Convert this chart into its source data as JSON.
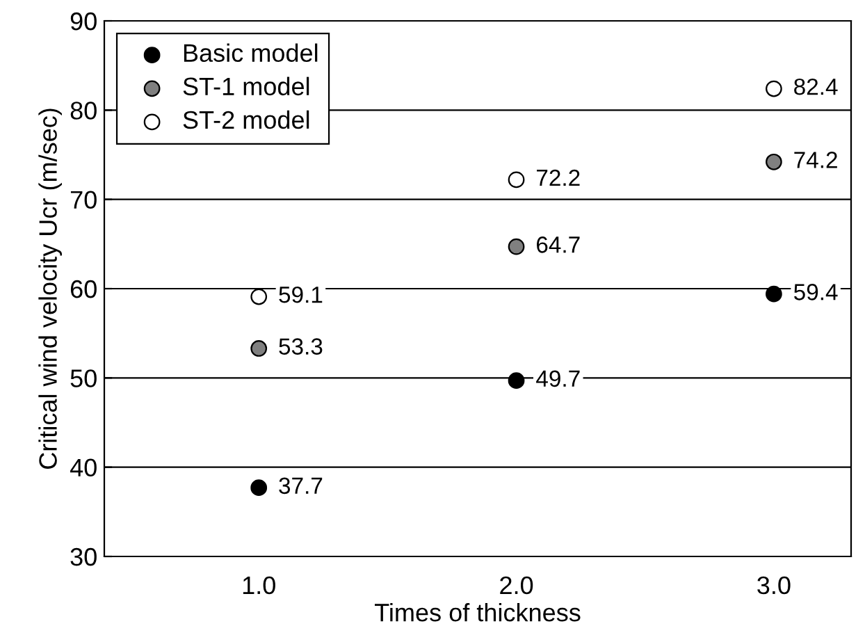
{
  "chart_data": {
    "type": "scatter",
    "xlabel": "Times of thickness",
    "ylabel": "Critical wind velocity Ucr (m/sec)",
    "x": [
      1,
      2,
      3
    ],
    "series": [
      {
        "name": "Basic model",
        "color": "#000000",
        "values": [
          37.7,
          49.7,
          59.4
        ]
      },
      {
        "name": "ST-1 model",
        "color": "#808080",
        "values": [
          53.3,
          64.7,
          74.2
        ]
      },
      {
        "name": "ST-2 model",
        "color": "#ffffff",
        "values": [
          59.1,
          72.2,
          82.4
        ]
      }
    ],
    "xlim": [
      0.4,
      3.3
    ],
    "xticks": [
      {
        "value": 1,
        "label": "1.0"
      },
      {
        "value": 2,
        "label": "2.0"
      },
      {
        "value": 3,
        "label": "3.0"
      }
    ],
    "ylim": [
      30,
      90
    ],
    "yticks": [
      30,
      40,
      50,
      60,
      70,
      80,
      90
    ],
    "grid": "y",
    "legend": "top left",
    "marker": "circle",
    "data_labels": true
  }
}
